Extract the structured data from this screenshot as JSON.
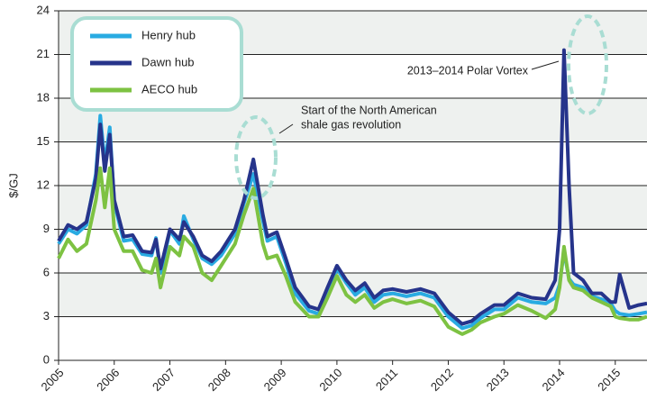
{
  "chart_data": {
    "type": "line",
    "y_label": "$/GJ",
    "x": [
      2005.0,
      2005.17,
      2005.33,
      2005.5,
      2005.67,
      2005.75,
      2005.83,
      2005.92,
      2006.0,
      2006.17,
      2006.33,
      2006.5,
      2006.67,
      2006.75,
      2006.83,
      2007.0,
      2007.17,
      2007.25,
      2007.42,
      2007.58,
      2007.75,
      2007.92,
      2008.17,
      2008.33,
      2008.5,
      2008.67,
      2008.75,
      2008.92,
      2009.08,
      2009.25,
      2009.5,
      2009.67,
      2009.83,
      2010.0,
      2010.17,
      2010.33,
      2010.5,
      2010.67,
      2010.83,
      2011.0,
      2011.25,
      2011.5,
      2011.75,
      2012.0,
      2012.25,
      2012.42,
      2012.58,
      2012.83,
      2013.0,
      2013.25,
      2013.5,
      2013.75,
      2013.92,
      2014.0,
      2014.08,
      2014.17,
      2014.25,
      2014.42,
      2014.58,
      2014.75,
      2014.92,
      2015.0,
      2015.08,
      2015.25,
      2015.42,
      2015.57
    ],
    "series": [
      {
        "name": "Henry hub",
        "color": "#29abe2",
        "values": [
          8.0,
          9.0,
          8.7,
          9.3,
          12.8,
          16.8,
          13.5,
          16.0,
          10.8,
          8.2,
          8.3,
          7.3,
          7.2,
          8.4,
          6.0,
          8.9,
          8.0,
          9.9,
          8.3,
          7.0,
          6.6,
          7.2,
          8.7,
          10.8,
          12.8,
          9.6,
          8.2,
          8.5,
          6.7,
          4.6,
          3.4,
          3.2,
          4.7,
          6.3,
          5.3,
          4.5,
          5.0,
          4.0,
          4.5,
          4.6,
          4.4,
          4.6,
          4.3,
          3.0,
          2.2,
          2.4,
          2.9,
          3.5,
          3.5,
          4.3,
          4.0,
          3.9,
          4.3,
          5.2,
          7.5,
          5.6,
          5.2,
          5.0,
          4.4,
          4.2,
          3.9,
          3.4,
          3.2,
          3.1,
          3.2,
          3.3
        ]
      },
      {
        "name": "Dawn hub",
        "color": "#26348b",
        "values": [
          8.2,
          9.3,
          9.0,
          9.5,
          12.5,
          16.2,
          13,
          15.5,
          11,
          8.5,
          8.6,
          7.5,
          7.4,
          8.3,
          6.3,
          9,
          8.3,
          9.5,
          8.5,
          7.2,
          6.8,
          7.5,
          9,
          11,
          13.8,
          10,
          8.5,
          8.8,
          7,
          5,
          3.7,
          3.5,
          5,
          6.5,
          5.5,
          4.8,
          5.3,
          4.3,
          4.8,
          4.9,
          4.7,
          4.9,
          4.6,
          3.3,
          2.5,
          2.7,
          3.2,
          3.8,
          3.8,
          4.6,
          4.3,
          4.2,
          5.5,
          9,
          21.3,
          12,
          6,
          5.5,
          4.6,
          4.6,
          4,
          4,
          5.9,
          3.6,
          3.8,
          3.9
        ]
      },
      {
        "name": "AECO hub",
        "color": "#7dc242",
        "values": [
          7.0,
          8.3,
          7.5,
          8.0,
          11.0,
          13.2,
          10.5,
          13.2,
          9.0,
          7.5,
          7.5,
          6.2,
          6.0,
          7.0,
          5.0,
          7.8,
          7.2,
          8.5,
          7.8,
          6.0,
          5.5,
          6.5,
          8.0,
          10.0,
          11.8,
          8.0,
          7.0,
          7.2,
          5.8,
          4.0,
          3.0,
          3.0,
          4.3,
          5.8,
          4.5,
          4.0,
          4.5,
          3.6,
          4.0,
          4.2,
          3.9,
          4.1,
          3.7,
          2.3,
          1.8,
          2.1,
          2.6,
          3.0,
          3.2,
          3.8,
          3.4,
          2.9,
          3.5,
          5.0,
          7.8,
          5.5,
          5.0,
          4.8,
          4.3,
          4.0,
          3.7,
          3.0,
          2.9,
          2.8,
          2.8,
          3.0
        ]
      }
    ],
    "xlim": [
      2005,
      2015.57
    ],
    "xticks": [
      2005,
      2006,
      2007,
      2008,
      2009,
      2010,
      2011,
      2012,
      2013,
      2014,
      2015
    ],
    "ylim": [
      0,
      24
    ],
    "yticks": [
      0,
      3,
      6,
      9,
      12,
      15,
      18,
      21,
      24
    ],
    "grid": true,
    "legend": "top-left",
    "annotations": [
      {
        "lines": [
          "Start of the North American",
          "shale gas revolution"
        ]
      },
      {
        "lines": [
          "2013–2014 Polar Vortex"
        ]
      }
    ]
  }
}
